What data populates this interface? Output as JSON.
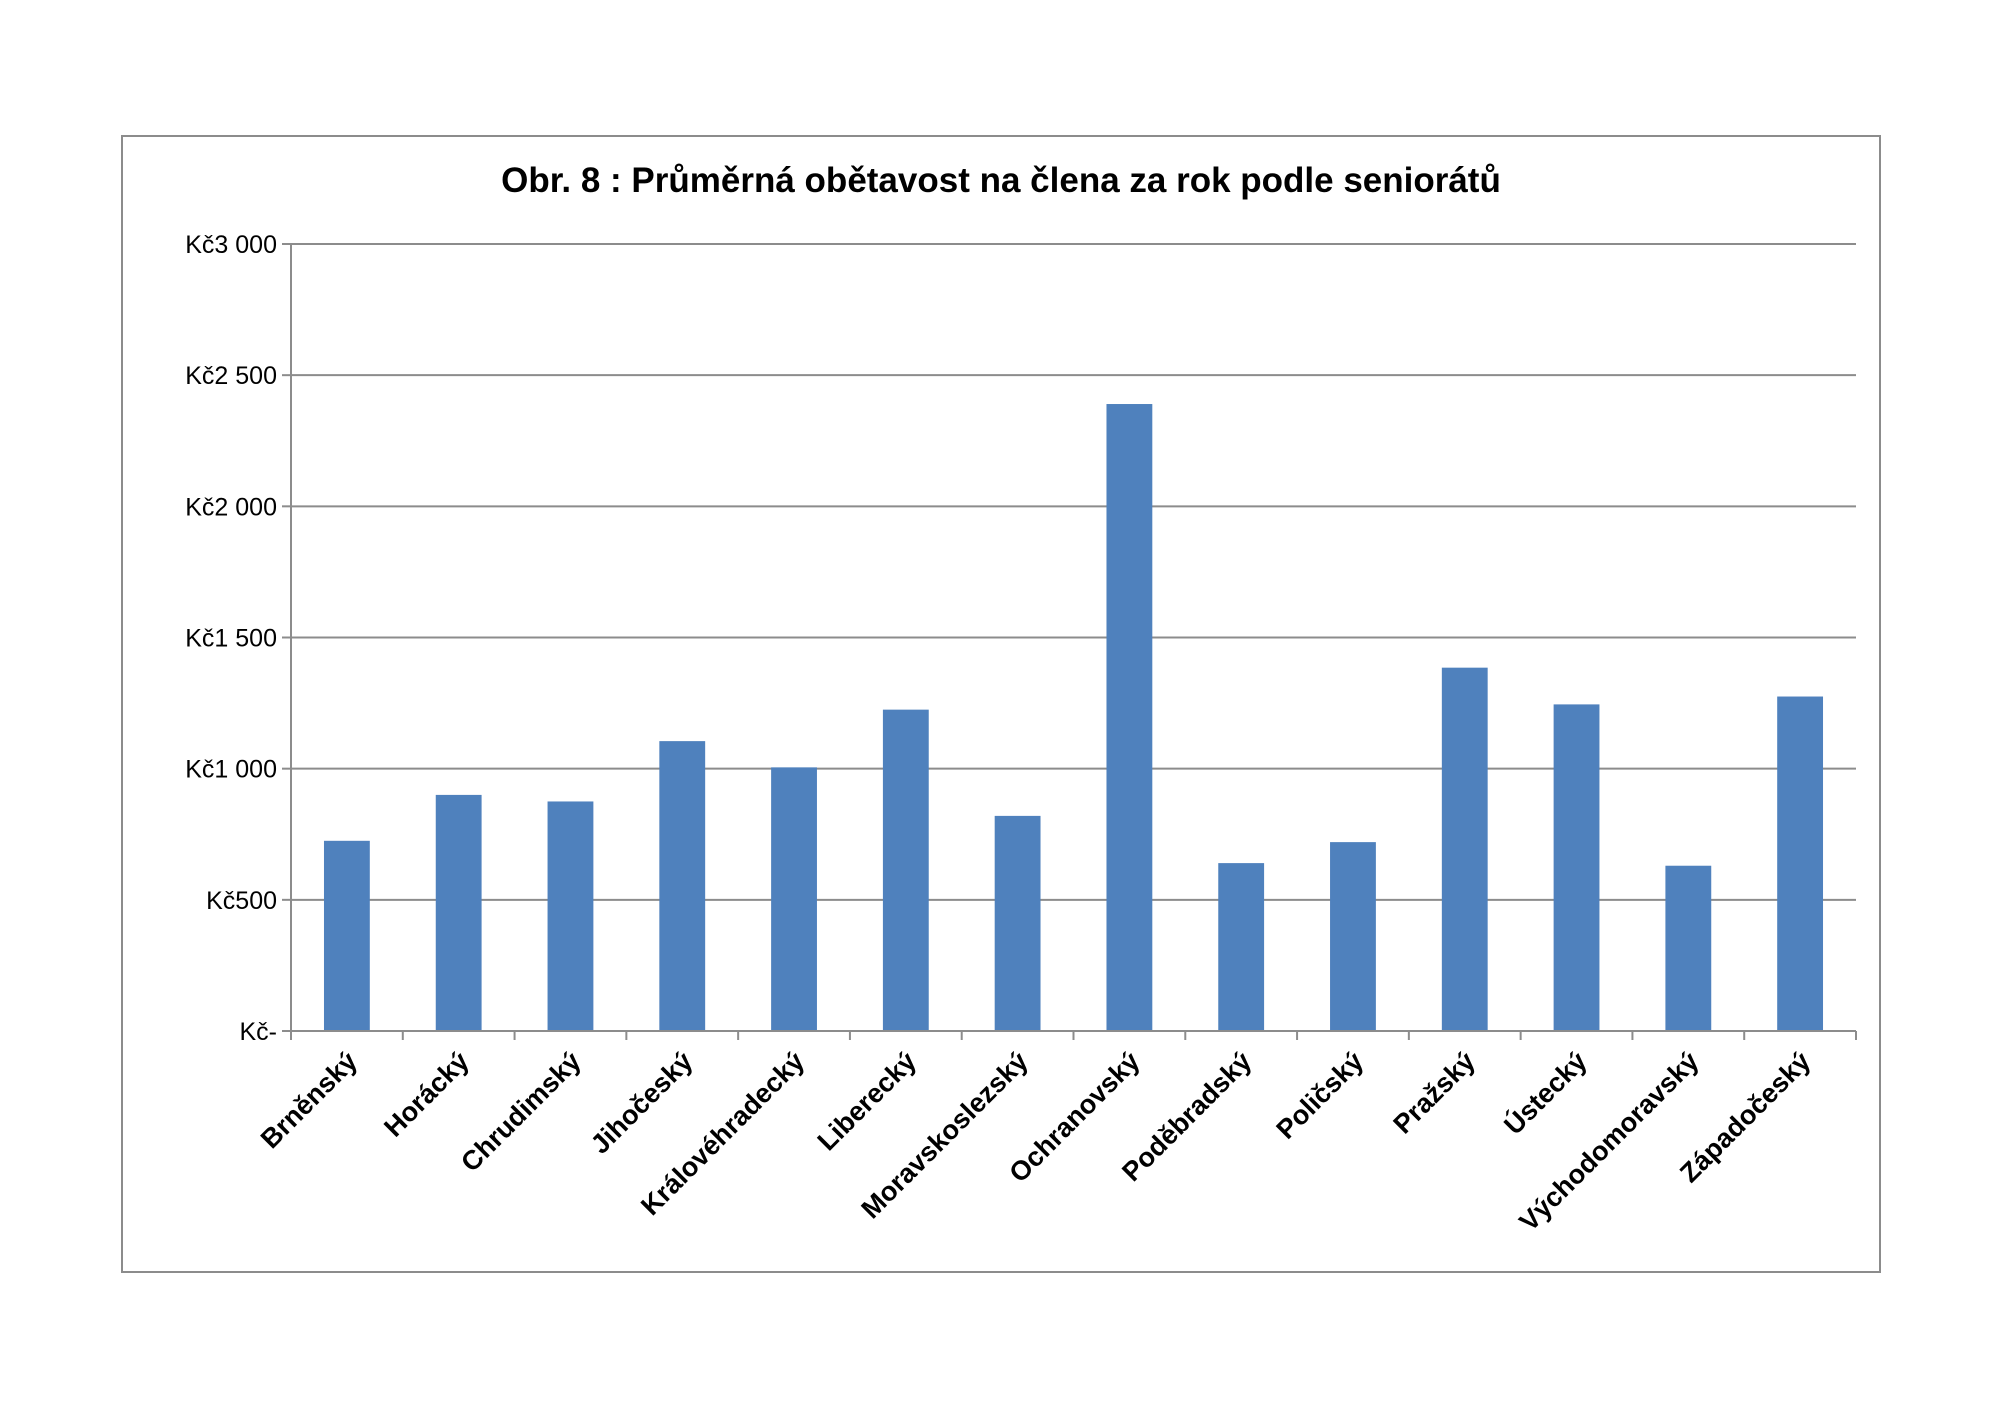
{
  "chart_data": {
    "type": "bar",
    "title": "Obr. 8 : Průměrná obětavost na člena za rok podle seniorátů",
    "xlabel": "",
    "ylabel": "",
    "ylim": [
      0,
      3000
    ],
    "yticks": [
      0,
      500,
      1000,
      1500,
      2000,
      2500,
      3000
    ],
    "ytick_labels": [
      "Kč-",
      "Kč500",
      "Kč1 000",
      "Kč1 500",
      "Kč2 000",
      "Kč2 500",
      "Kč3 000"
    ],
    "grid": true,
    "legend": "none",
    "bar_color": "#4f81bd",
    "categories": [
      "Brněnský",
      "Horácký",
      "Chrudimský",
      "Jihočeský",
      "Královéhradecký",
      "Liberecký",
      "Moravskoslezský",
      "Ochranovský",
      "Poděbradský",
      "Poličský",
      "Pražský",
      "Ústecký",
      "Východomoravský",
      "Západočeský"
    ],
    "values": [
      725,
      900,
      875,
      1105,
      1005,
      1225,
      820,
      2390,
      640,
      720,
      1385,
      1245,
      630,
      1275
    ]
  }
}
